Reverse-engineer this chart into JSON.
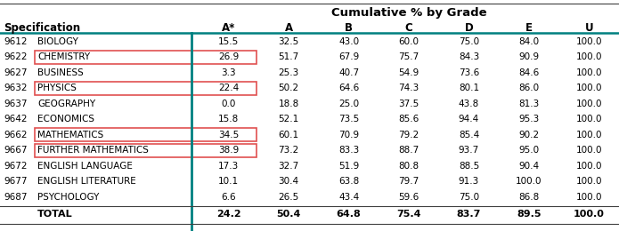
{
  "title": "Cumulative % by Grade",
  "col_headers": [
    "A*",
    "A",
    "B",
    "C",
    "D",
    "E",
    "U"
  ],
  "rows": [
    {
      "code": "9612",
      "name": "BIOLOGY",
      "vals": [
        15.5,
        32.5,
        43.0,
        60.0,
        75.0,
        84.0,
        100.0
      ],
      "boxed": false
    },
    {
      "code": "9622",
      "name": "CHEMISTRY",
      "vals": [
        26.9,
        51.7,
        67.9,
        75.7,
        84.3,
        90.9,
        100.0
      ],
      "boxed": true
    },
    {
      "code": "9627",
      "name": "BUSINESS",
      "vals": [
        3.3,
        25.3,
        40.7,
        54.9,
        73.6,
        84.6,
        100.0
      ],
      "boxed": false
    },
    {
      "code": "9632",
      "name": "PHYSICS",
      "vals": [
        22.4,
        50.2,
        64.6,
        74.3,
        80.1,
        86.0,
        100.0
      ],
      "boxed": true
    },
    {
      "code": "9637",
      "name": "GEOGRAPHY",
      "vals": [
        0.0,
        18.8,
        25.0,
        37.5,
        43.8,
        81.3,
        100.0
      ],
      "boxed": false
    },
    {
      "code": "9642",
      "name": "ECONOMICS",
      "vals": [
        15.8,
        52.1,
        73.5,
        85.6,
        94.4,
        95.3,
        100.0
      ],
      "boxed": false
    },
    {
      "code": "9662",
      "name": "MATHEMATICS",
      "vals": [
        34.5,
        60.1,
        70.9,
        79.2,
        85.4,
        90.2,
        100.0
      ],
      "boxed": true
    },
    {
      "code": "9667",
      "name": "FURTHER MATHEMATICS",
      "vals": [
        38.9,
        73.2,
        83.3,
        88.7,
        93.7,
        95.0,
        100.0
      ],
      "boxed": true
    },
    {
      "code": "9672",
      "name": "ENGLISH LANGUAGE",
      "vals": [
        17.3,
        32.7,
        51.9,
        80.8,
        88.5,
        90.4,
        100.0
      ],
      "boxed": false
    },
    {
      "code": "9677",
      "name": "ENGLISH LITERATURE",
      "vals": [
        10.1,
        30.4,
        63.8,
        79.7,
        91.3,
        100.0,
        100.0
      ],
      "boxed": false
    },
    {
      "code": "9687",
      "name": "PSYCHOLOGY",
      "vals": [
        6.6,
        26.5,
        43.4,
        59.6,
        75.0,
        86.8,
        100.0
      ],
      "boxed": false
    }
  ],
  "total": {
    "vals": [
      24.2,
      50.4,
      64.8,
      75.4,
      83.7,
      89.5,
      100.0
    ]
  },
  "teal_line_color": "#008080",
  "box_color": "#e05050",
  "header_line_color": "#404040",
  "bg_color": "#ffffff",
  "text_color": "#000000",
  "bold_color": "#000000"
}
